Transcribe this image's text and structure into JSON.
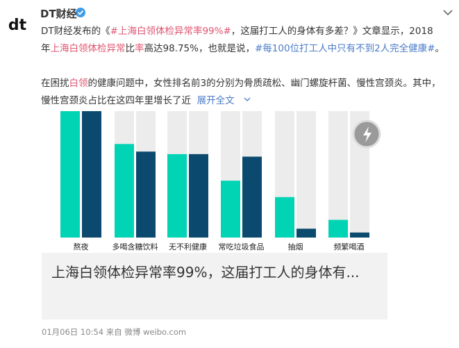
{
  "post": {
    "author": "DT财经",
    "text": [
      [
        {
          "text": "DT财经发布的《",
          "color": "#333333"
        },
        {
          "text": "#上海白领体检异常率99%#",
          "color": "#e0536e"
        },
        {
          "text": "，这届打工人的身体有多差？》文章显示，2018",
          "color": "#333333"
        }
      ],
      [
        {
          "text": "年",
          "color": "#333333"
        },
        {
          "text": "上海白领体检异常",
          "color": "#e0536e"
        },
        {
          "text": "比",
          "color": "#333333"
        },
        {
          "text": "率",
          "color": "#e0536e"
        },
        {
          "text": "高达98.75%，也就是说，",
          "color": "#333333"
        },
        {
          "text": "#每100位打工人中只有不到2人完全健康#",
          "color": "#4a7bc8"
        },
        {
          "text": "。",
          "color": "#333333"
        }
      ],
      [],
      [
        {
          "text": "在困扰",
          "color": "#333333"
        },
        {
          "text": "白领",
          "color": "#e0536e"
        },
        {
          "text": "的健康问题中，女性排名前3的分别为骨质疏松、幽门螺旋杆菌、慢性宫颈炎。其中，",
          "color": "#333333"
        }
      ],
      [
        {
          "text": "慢性宫颈炎占比在这四年里增长了近",
          "color": "#333333"
        },
        {
          "text": "  展开全文",
          "color": "#4a7bc8"
        }
      ]
    ],
    "image": {
      "chart": {
        "type": "bar",
        "categories": [
          "熬夜",
          "多喝含糖饮料",
          "无不利健康",
          "常吃垃圾食品",
          "抽烟",
          "频繁喝酒"
        ],
        "series": [
          {
            "color": "#00d4b4",
            "values": [
              100,
              74,
              66,
              45,
              32,
              14
            ]
          },
          {
            "color": "#0b4a6e",
            "values": [
              100,
              68,
              66,
              64,
              7,
              4
            ]
          }
        ],
        "ylim": [
          0,
          100
        ]
      }
    },
    "card_title": "上海白领体检异常率99%，这届打工人的身体有...",
    "footer": "01月06日 10:54  来自 微博 weibo.com"
  }
}
